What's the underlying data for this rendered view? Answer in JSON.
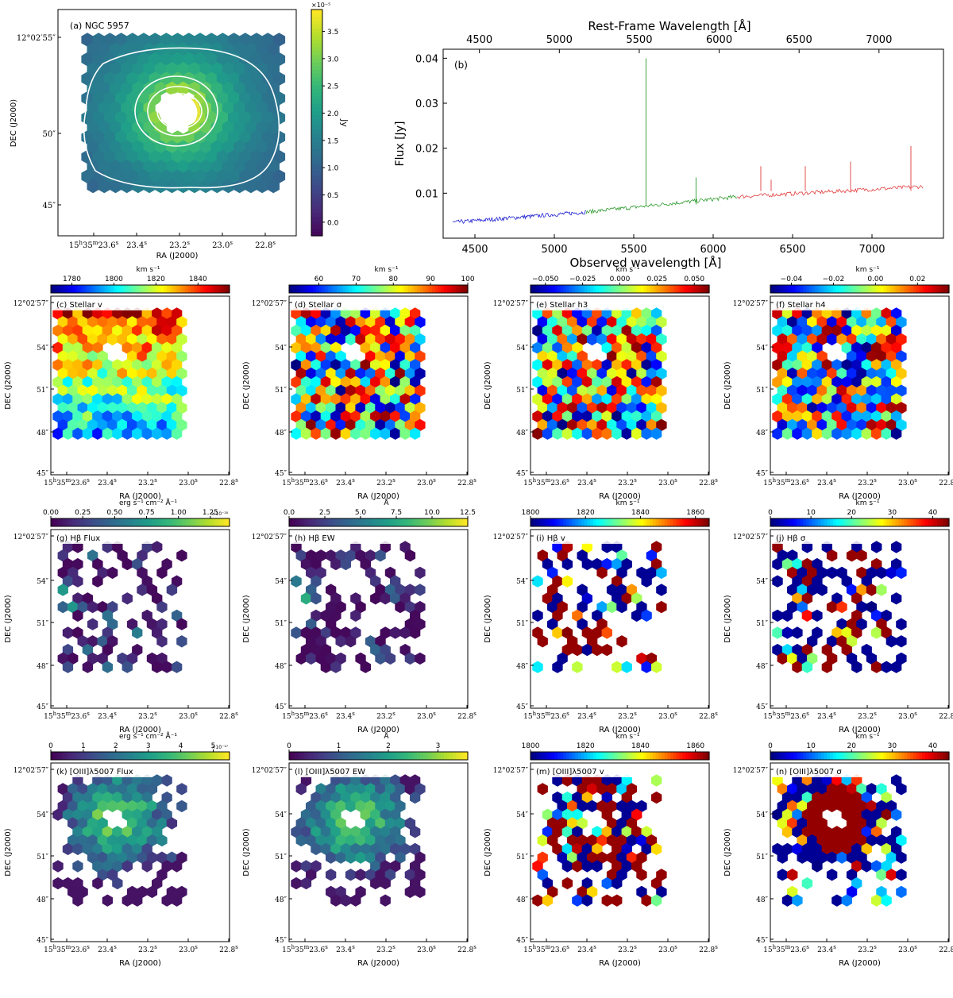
{
  "chart_data": [
    {
      "id": "a",
      "type": "heatmap",
      "title": "(a) NGC 5957",
      "xlabel": "RA (J2000)",
      "ylabel": "DEC (J2000)",
      "xticks": [
        "15h35m23.6s",
        "23.4s",
        "23.2s",
        "23.0s",
        "22.8s"
      ],
      "yticks": [
        "12°02′55″",
        "50″",
        "45″"
      ],
      "colorbar": {
        "label": "Jy",
        "exponent": "×10⁻⁵",
        "ticks": [
          "3.5",
          "3.0",
          "2.5",
          "2.0",
          "1.5",
          "1.0",
          "0.5",
          "0.0"
        ],
        "range": [
          -0.25,
          3.9
        ],
        "cmap": "viridis"
      }
    },
    {
      "id": "b",
      "type": "line",
      "title": "(b)",
      "xlabel": "Observed wavelength [Å]",
      "xlabel_top": "Rest-Frame Wavelength [Å]",
      "ylabel": "Flux [Jy]",
      "xlim": [
        4300,
        7450
      ],
      "ylim": [
        0,
        0.042
      ],
      "xticks": [
        4500,
        5000,
        5500,
        6000,
        6500,
        7000
      ],
      "xticks_top": [
        4500,
        5000,
        5500,
        6000,
        6500,
        7000
      ],
      "yticks": [
        0.01,
        0.02,
        0.03,
        0.04
      ],
      "series": [
        {
          "name": "blue arm",
          "color": "#1f1fd0",
          "x": [
            4360,
            5200
          ],
          "y": [
            0.0035,
            0.0058
          ]
        },
        {
          "name": "green arm",
          "color": "#2e9b2e",
          "x": [
            5200,
            6150
          ],
          "y": [
            0.0058,
            0.0092
          ]
        },
        {
          "name": "red arm",
          "color": "#e23b3b",
          "x": [
            6150,
            7320
          ],
          "y": [
            0.0092,
            0.0115
          ]
        }
      ],
      "emission_lines": [
        {
          "x": 5577,
          "peak": 0.04
        },
        {
          "x": 5892,
          "peak": 0.0135
        },
        {
          "x": 6300,
          "peak": 0.016
        },
        {
          "x": 6365,
          "peak": 0.013
        },
        {
          "x": 6580,
          "peak": 0.016
        },
        {
          "x": 6865,
          "peak": 0.017
        },
        {
          "x": 7245,
          "peak": 0.0205
        }
      ]
    },
    {
      "id": "c",
      "type": "heatmap",
      "title": "(c) Stellar v",
      "unit": "km s⁻¹",
      "ticks": [
        "1780",
        "1800",
        "1820",
        "1840"
      ],
      "range": [
        1770,
        1855
      ],
      "cmap": "jet",
      "xlabel": "RA (J2000)",
      "ylabel": "DEC (J2000)"
    },
    {
      "id": "d",
      "type": "heatmap",
      "title": "(d) Stellar σ",
      "unit": "km s⁻¹",
      "ticks": [
        "60",
        "70",
        "80",
        "90",
        "100"
      ],
      "range": [
        52,
        100
      ],
      "cmap": "jet",
      "xlabel": "RA (J2000)",
      "ylabel": "DEC (J2000)"
    },
    {
      "id": "e",
      "type": "heatmap",
      "title": "(e) Stellar h3",
      "unit": "km s⁻¹",
      "ticks": [
        "−0.050",
        "−0.025",
        "0.000",
        "0.025",
        "0.050"
      ],
      "range": [
        -0.06,
        0.06
      ],
      "cmap": "jet",
      "xlabel": "RA (J2000)",
      "ylabel": "DEC (J2000)"
    },
    {
      "id": "f",
      "type": "heatmap",
      "title": "(f) Stellar h4",
      "unit": "km s⁻¹",
      "ticks": [
        "−0.04",
        "−0.02",
        "0.00",
        "0.02"
      ],
      "range": [
        -0.05,
        0.035
      ],
      "cmap": "jet",
      "xlabel": "RA (J2000)",
      "ylabel": "DEC (J2000)"
    },
    {
      "id": "g",
      "type": "heatmap",
      "title": "(g) Hβ Flux",
      "unit": "erg s⁻¹ cm⁻² Å⁻¹",
      "exponent": "×10⁻¹⁸",
      "ticks": [
        "0.00",
        "0.25",
        "0.50",
        "0.75",
        "1.00",
        "1.25"
      ],
      "range": [
        0,
        1.4
      ],
      "cmap": "viridis",
      "xlabel": "RA (J2000)",
      "ylabel": "DEC (J2000)"
    },
    {
      "id": "h",
      "type": "heatmap",
      "title": "(h) Hβ EW",
      "unit": "Å",
      "ticks": [
        "0.0",
        "2.5",
        "5.0",
        "7.5",
        "10.0",
        "12.5"
      ],
      "range": [
        0,
        12.5
      ],
      "cmap": "viridis",
      "xlabel": "RA (J2000)",
      "ylabel": "DEC (J2000)"
    },
    {
      "id": "i",
      "type": "heatmap",
      "title": "(i) Hβ v",
      "unit": "km s⁻¹",
      "ticks": [
        "1800",
        "1820",
        "1840",
        "1860"
      ],
      "range": [
        1800,
        1865
      ],
      "cmap": "jet",
      "xlabel": "RA (J2000)",
      "ylabel": "DEC (J2000)"
    },
    {
      "id": "j",
      "type": "heatmap",
      "title": "(j) Hβ σ",
      "unit": "km s⁻¹",
      "ticks": [
        "0",
        "10",
        "20",
        "30",
        "40"
      ],
      "range": [
        0,
        44
      ],
      "cmap": "jet",
      "xlabel": "RA (J2000)",
      "ylabel": "DEC (J2000)"
    },
    {
      "id": "k",
      "type": "heatmap",
      "title": "(k) [OIII]λ5007 Flux",
      "unit": "erg s⁻¹ cm⁻² Å⁻¹",
      "exponent": "×10⁻¹⁷",
      "ticks": [
        "0",
        "1",
        "2",
        "3",
        "4",
        "5"
      ],
      "range": [
        0,
        5.5
      ],
      "cmap": "viridis",
      "xlabel": "RA (J2000)",
      "ylabel": "DEC (J2000)"
    },
    {
      "id": "l",
      "type": "heatmap",
      "title": "(l) [OIII]λ5007 EW",
      "unit": "Å",
      "ticks": [
        "0",
        "1",
        "2",
        "3"
      ],
      "range": [
        0,
        3.6
      ],
      "cmap": "viridis",
      "xlabel": "RA (J2000)",
      "ylabel": "DEC (J2000)"
    },
    {
      "id": "m",
      "type": "heatmap",
      "title": "(m) [OIII]λ5007 v",
      "unit": "km s⁻¹",
      "ticks": [
        "1800",
        "1820",
        "1840",
        "1860"
      ],
      "range": [
        1800,
        1865
      ],
      "cmap": "jet",
      "xlabel": "RA (J2000)",
      "ylabel": "DEC (J2000)"
    },
    {
      "id": "n",
      "type": "heatmap",
      "title": "(n) [OIII]λ5007 σ",
      "unit": "km s⁻¹",
      "ticks": [
        "0",
        "10",
        "20",
        "30",
        "40"
      ],
      "range": [
        0,
        44
      ],
      "cmap": "jet",
      "xlabel": "RA (J2000)",
      "ylabel": "DEC (J2000)"
    }
  ],
  "map_axes": {
    "xticks": [
      "15h35m23.6s",
      "23.4s",
      "23.2s",
      "23.0s",
      "22.8s"
    ],
    "yticks": [
      "12°02′57″",
      "54″",
      "51″",
      "48″",
      "45″"
    ]
  }
}
